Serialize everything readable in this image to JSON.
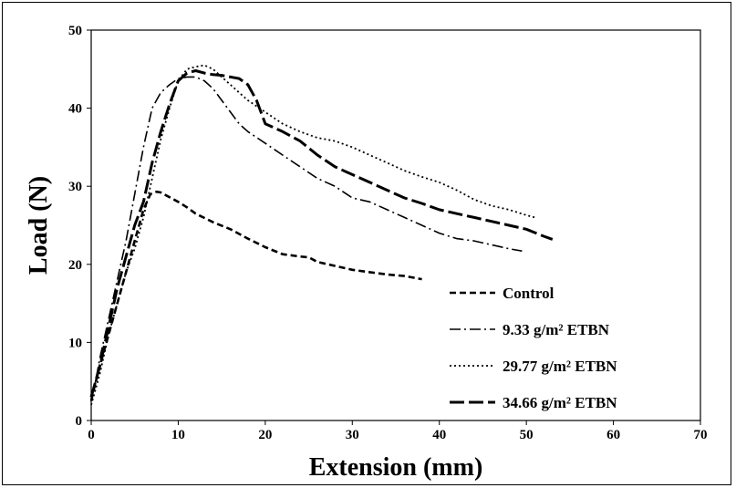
{
  "chart_data": {
    "type": "line",
    "title": "",
    "xlabel": "Extension (mm)",
    "ylabel": "Load (N)",
    "xlim": [
      0,
      70
    ],
    "ylim": [
      0,
      50
    ],
    "xticks": [
      0,
      10,
      20,
      30,
      40,
      50,
      60,
      70
    ],
    "yticks": [
      0,
      10,
      20,
      30,
      40,
      50
    ],
    "grid": false,
    "legend_position": "bottom-right inside plot",
    "series": [
      {
        "name": "Control",
        "style": "dashed",
        "color": "#000000",
        "x": [
          0,
          0.3,
          1,
          2,
          3,
          4,
          5,
          6,
          6.8,
          7.5,
          8,
          9,
          10,
          11,
          12,
          14,
          16,
          18,
          20,
          22,
          24,
          25,
          26,
          28,
          30,
          32,
          34,
          36,
          38
        ],
        "y": [
          2.5,
          4,
          7,
          11,
          15,
          19,
          23,
          27,
          29,
          29.3,
          29.2,
          28.6,
          28,
          27.3,
          26.5,
          25.4,
          24.5,
          23.3,
          22.2,
          21.3,
          21,
          20.9,
          20.3,
          19.8,
          19.3,
          19,
          18.7,
          18.5,
          18.1
        ]
      },
      {
        "name": "9.33 g/m² ETBN",
        "style": "dash-dot",
        "color": "#000000",
        "x": [
          0,
          0.5,
          1,
          2,
          3,
          4,
          5,
          6,
          7,
          8,
          9,
          10,
          11,
          12,
          13,
          14,
          15,
          16,
          17,
          18,
          20,
          22,
          24,
          26,
          28,
          30,
          32,
          34,
          36,
          38,
          40,
          42,
          44,
          46,
          48,
          49.5
        ],
        "y": [
          3,
          5,
          8,
          13,
          18,
          23,
          29,
          35,
          40,
          42,
          43,
          43.8,
          44,
          44,
          43.5,
          42.5,
          41,
          39.5,
          38,
          37,
          35.5,
          34,
          32.5,
          31,
          30,
          28.5,
          28,
          27,
          26,
          25,
          24,
          23.3,
          23,
          22.5,
          22,
          21.7
        ]
      },
      {
        "name": "29.77 g/m² ETBN",
        "style": "dotted",
        "color": "#000000",
        "x": [
          0,
          0.5,
          1,
          2,
          3,
          4,
          5,
          6,
          7,
          8,
          9,
          10,
          11,
          12,
          13,
          14,
          15,
          16,
          17,
          18,
          20,
          22,
          24,
          26,
          28,
          30,
          32,
          34,
          36,
          38,
          40,
          42,
          44,
          46,
          48,
          50,
          51
        ],
        "y": [
          2,
          4,
          6,
          11,
          15,
          19,
          22,
          26,
          31,
          36,
          40,
          43.5,
          45,
          45.3,
          45.5,
          45,
          44,
          43,
          42,
          41,
          39.5,
          38,
          37,
          36.2,
          35.8,
          35,
          34,
          33,
          32,
          31.2,
          30.5,
          29.5,
          28.3,
          27.5,
          27,
          26.3,
          26
        ]
      },
      {
        "name": "34.66 g/m² ETBN",
        "style": "long-dash",
        "color": "#000000",
        "x": [
          0,
          0.5,
          1,
          2,
          3,
          4,
          5,
          6,
          7,
          8,
          9,
          10,
          11,
          12,
          13,
          14,
          15,
          16,
          17,
          18,
          19,
          20,
          22,
          24,
          26,
          28,
          30,
          32,
          34,
          36,
          38,
          40,
          42,
          44,
          46,
          48,
          50,
          52,
          53
        ],
        "y": [
          3,
          5,
          7,
          12,
          17,
          21,
          25,
          28,
          33,
          37,
          40.5,
          43.5,
          44.5,
          44.8,
          44.5,
          44.3,
          44.2,
          44,
          43.8,
          43,
          41,
          38,
          37,
          35.8,
          34,
          32.5,
          31.5,
          30.5,
          29.5,
          28.5,
          27.8,
          27,
          26.5,
          26,
          25.5,
          25,
          24.5,
          23.6,
          23.2
        ]
      }
    ]
  }
}
